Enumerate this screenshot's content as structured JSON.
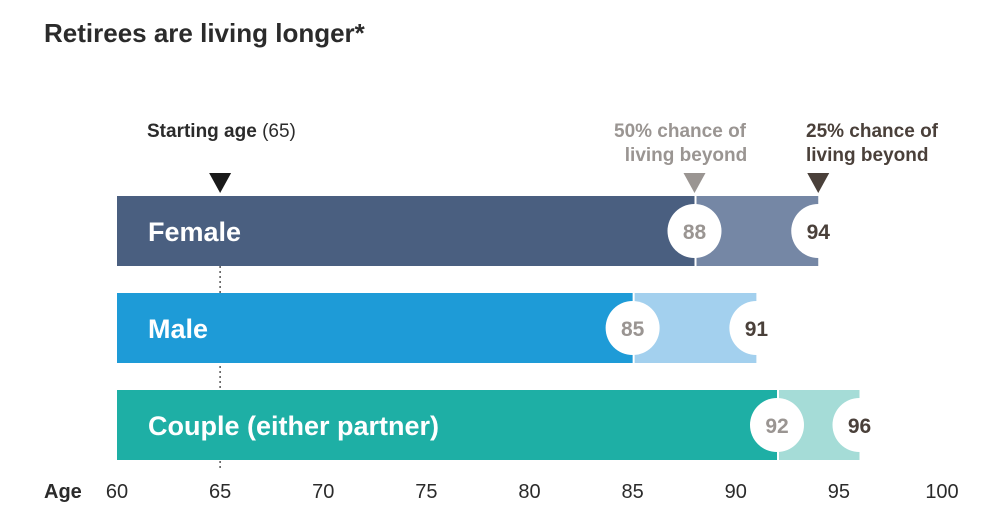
{
  "chart_data": {
    "type": "bar",
    "title": "Retirees are living longer*",
    "xlabel": "Age",
    "xlim": [
      60,
      100
    ],
    "ticks": [
      60,
      65,
      70,
      75,
      80,
      85,
      90,
      95,
      100
    ],
    "start": 65,
    "start_label_bold": "Starting age",
    "start_label_rest": " (65)",
    "series": [
      {
        "name": "50% chance of living beyond",
        "annotation_lines": [
          "50% chance of",
          "living beyond"
        ],
        "color": "#9a9592"
      },
      {
        "name": "25% chance of living beyond",
        "annotation_lines": [
          "25% chance of",
          "living beyond"
        ],
        "color": "#4a403a"
      }
    ],
    "categories": [
      {
        "label": "Female",
        "age_50": 88,
        "age_25": 94,
        "color_main": "#4a5f80",
        "color_ext": "#7587a5"
      },
      {
        "label": "Male",
        "age_50": 85,
        "age_25": 91,
        "color_main": "#1e9bd7",
        "color_ext": "#a3d0ee"
      },
      {
        "label": "Couple (either partner)",
        "age_50": 92,
        "age_25": 96,
        "color_main": "#1eafa5",
        "color_ext": "#a5dcd7"
      }
    ]
  }
}
